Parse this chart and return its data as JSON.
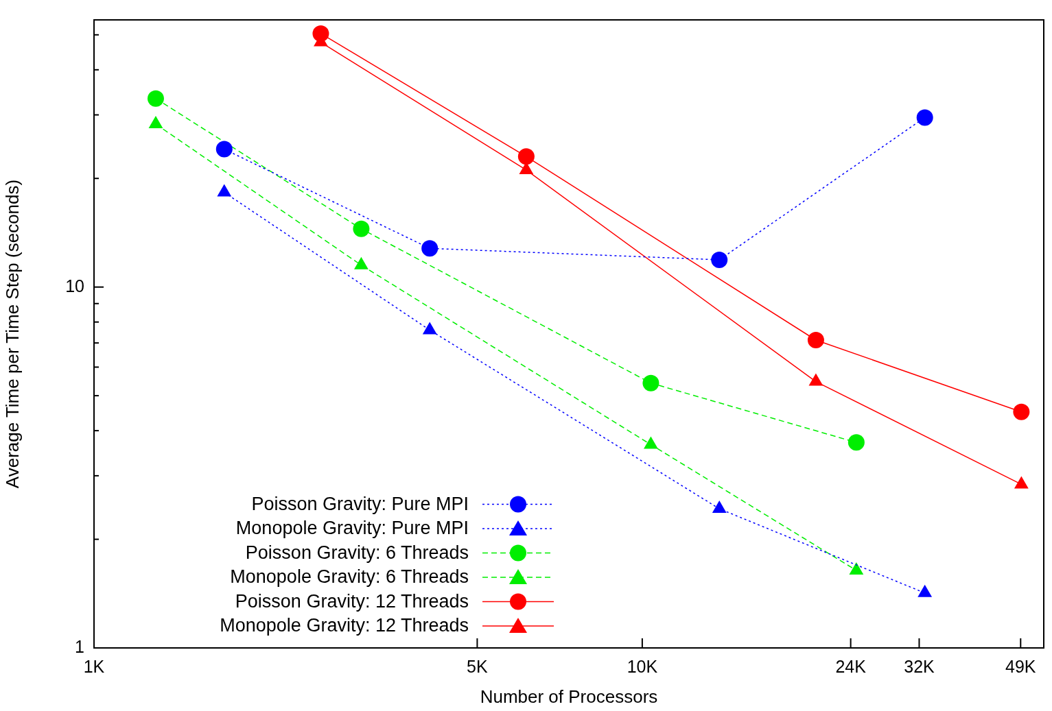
{
  "chart_data": {
    "type": "line",
    "xlabel": "Number of Processors",
    "ylabel": "Average Time per Time Step (seconds)",
    "log": "xy",
    "grid": false,
    "legend": "bottom left",
    "xlim": [
      1000,
      54000
    ],
    "xticks": [
      {
        "value": 1000,
        "label": "1K"
      },
      {
        "value": 5000,
        "label": "5K"
      },
      {
        "value": 10000,
        "label": "10K"
      },
      {
        "value": 24000,
        "label": "24K"
      },
      {
        "value": 32000,
        "label": "32K"
      },
      {
        "value": 49000,
        "label": "49K"
      }
    ],
    "ylim": [
      1,
      55
    ],
    "yticks": [
      1,
      {
        "value": 2,
        "label": null
      },
      {
        "value": 3,
        "label": null
      },
      {
        "value": 4,
        "label": null
      },
      {
        "value": 5,
        "label": null
      },
      {
        "value": 6,
        "label": null
      },
      {
        "value": 7,
        "label": null
      },
      {
        "value": 8,
        "label": null
      },
      {
        "value": 9,
        "label": null
      },
      10,
      {
        "value": 20,
        "label": null
      },
      {
        "value": 30,
        "label": null
      },
      {
        "value": 40,
        "label": null
      },
      {
        "value": 50,
        "label": null
      }
    ],
    "series": [
      {
        "name": "Poisson Gravity: Pure MPI",
        "color": "#0000ff",
        "marker": "circle",
        "line_style": "dotted",
        "x": [
          1728,
          4096,
          13824,
          32768
        ],
        "values": [
          24.1,
          12.8,
          11.9,
          29.5
        ]
      },
      {
        "name": "Monopole Gravity: Pure MPI",
        "color": "#0000ff",
        "marker": "triangle",
        "line_style": "dotted",
        "x": [
          1728,
          4096,
          13824,
          32768
        ],
        "values": [
          18.3,
          7.6,
          2.43,
          1.42
        ]
      },
      {
        "name": "Poisson Gravity: 6 Threads",
        "color": "#00ee00",
        "marker": "circle",
        "line_style": "dashed",
        "x": [
          1296,
          3072,
          10368,
          24576
        ],
        "values": [
          33.3,
          14.5,
          5.42,
          3.71
        ]
      },
      {
        "name": "Monopole Gravity: 6 Threads",
        "color": "#00ee00",
        "marker": "triangle",
        "line_style": "dashed",
        "x": [
          1296,
          3072,
          10368,
          24576
        ],
        "values": [
          28.3,
          11.5,
          3.66,
          1.64
        ]
      },
      {
        "name": "Poisson Gravity: 12 Threads",
        "color": "#ff0000",
        "marker": "circle",
        "line_style": "solid",
        "x": [
          2592,
          6144,
          20736,
          49152
        ],
        "values": [
          50.4,
          23.0,
          7.13,
          4.51
        ]
      },
      {
        "name": "Monopole Gravity: 12 Threads",
        "color": "#ff0000",
        "marker": "triangle",
        "line_style": "solid",
        "x": [
          2592,
          6144,
          20736,
          49152
        ],
        "values": [
          47.7,
          21.1,
          5.47,
          2.84
        ]
      }
    ]
  }
}
